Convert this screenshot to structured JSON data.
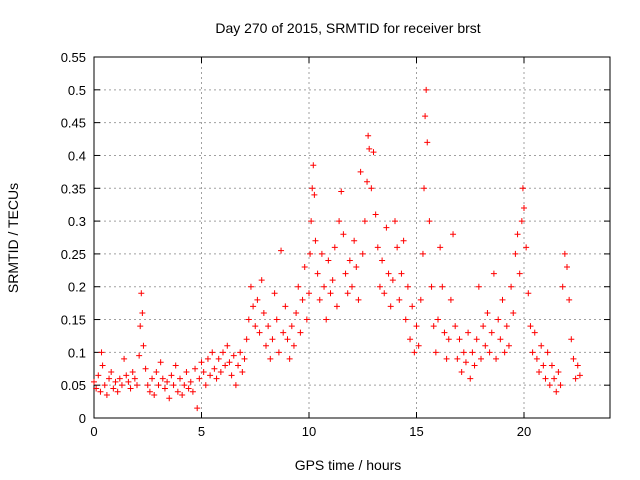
{
  "chart_data": {
    "type": "scatter",
    "title": "Day 270 of 2015, SRMTID for receiver brst",
    "xlabel": "GPS time / hours",
    "ylabel": "SRMTID / TECUs",
    "xlim": [
      0,
      24
    ],
    "ylim": [
      0,
      0.55
    ],
    "xticks": [
      0,
      5,
      10,
      15,
      20
    ],
    "xtick_labels": [
      "0",
      "5",
      "10",
      "15",
      "20"
    ],
    "yticks": [
      0,
      0.05,
      0.1,
      0.15,
      0.2,
      0.25,
      0.3,
      0.35,
      0.4,
      0.45,
      0.5,
      0.55
    ],
    "ytick_labels": [
      "0",
      "0.05",
      "0.1",
      "0.15",
      "0.2",
      "0.25",
      "0.3",
      "0.35",
      "0.4",
      "0.45",
      "0.5",
      "0.55"
    ],
    "grid": true,
    "marker": "plus",
    "marker_color": "#ff0000",
    "series": [
      {
        "name": "SRMTID",
        "points": [
          [
            0.0,
            0.055
          ],
          [
            0.1,
            0.045
          ],
          [
            0.2,
            0.065
          ],
          [
            0.3,
            0.04
          ],
          [
            0.35,
            0.1
          ],
          [
            0.4,
            0.08
          ],
          [
            0.5,
            0.05
          ],
          [
            0.6,
            0.035
          ],
          [
            0.7,
            0.06
          ],
          [
            0.8,
            0.07
          ],
          [
            0.9,
            0.045
          ],
          [
            1.0,
            0.055
          ],
          [
            1.1,
            0.04
          ],
          [
            1.2,
            0.06
          ],
          [
            1.3,
            0.05
          ],
          [
            1.4,
            0.09
          ],
          [
            1.5,
            0.065
          ],
          [
            1.6,
            0.055
          ],
          [
            1.7,
            0.045
          ],
          [
            1.8,
            0.07
          ],
          [
            1.9,
            0.06
          ],
          [
            2.0,
            0.05
          ],
          [
            2.1,
            0.095
          ],
          [
            2.15,
            0.14
          ],
          [
            2.2,
            0.19
          ],
          [
            2.25,
            0.16
          ],
          [
            2.3,
            0.11
          ],
          [
            2.4,
            0.075
          ],
          [
            2.5,
            0.05
          ],
          [
            2.6,
            0.04
          ],
          [
            2.7,
            0.06
          ],
          [
            2.8,
            0.035
          ],
          [
            2.9,
            0.07
          ],
          [
            3.0,
            0.05
          ],
          [
            3.1,
            0.085
          ],
          [
            3.2,
            0.06
          ],
          [
            3.3,
            0.045
          ],
          [
            3.4,
            0.055
          ],
          [
            3.5,
            0.03
          ],
          [
            3.6,
            0.065
          ],
          [
            3.7,
            0.05
          ],
          [
            3.8,
            0.08
          ],
          [
            3.9,
            0.04
          ],
          [
            4.0,
            0.06
          ],
          [
            4.1,
            0.035
          ],
          [
            4.2,
            0.05
          ],
          [
            4.3,
            0.07
          ],
          [
            4.4,
            0.045
          ],
          [
            4.5,
            0.055
          ],
          [
            4.6,
            0.04
          ],
          [
            4.7,
            0.075
          ],
          [
            4.8,
            0.015
          ],
          [
            4.9,
            0.06
          ],
          [
            5.0,
            0.085
          ],
          [
            5.1,
            0.07
          ],
          [
            5.2,
            0.05
          ],
          [
            5.3,
            0.09
          ],
          [
            5.4,
            0.065
          ],
          [
            5.5,
            0.1
          ],
          [
            5.6,
            0.075
          ],
          [
            5.7,
            0.06
          ],
          [
            5.8,
            0.09
          ],
          [
            5.9,
            0.07
          ],
          [
            6.0,
            0.1
          ],
          [
            6.1,
            0.08
          ],
          [
            6.2,
            0.11
          ],
          [
            6.3,
            0.085
          ],
          [
            6.4,
            0.065
          ],
          [
            6.5,
            0.095
          ],
          [
            6.6,
            0.05
          ],
          [
            6.7,
            0.08
          ],
          [
            6.8,
            0.1
          ],
          [
            6.9,
            0.07
          ],
          [
            7.0,
            0.09
          ],
          [
            7.1,
            0.12
          ],
          [
            7.2,
            0.15
          ],
          [
            7.3,
            0.2
          ],
          [
            7.4,
            0.17
          ],
          [
            7.5,
            0.14
          ],
          [
            7.6,
            0.18
          ],
          [
            7.7,
            0.13
          ],
          [
            7.8,
            0.21
          ],
          [
            7.9,
            0.16
          ],
          [
            8.0,
            0.11
          ],
          [
            8.1,
            0.14
          ],
          [
            8.2,
            0.09
          ],
          [
            8.3,
            0.12
          ],
          [
            8.4,
            0.19
          ],
          [
            8.5,
            0.15
          ],
          [
            8.6,
            0.1
          ],
          [
            8.7,
            0.255
          ],
          [
            8.8,
            0.13
          ],
          [
            8.9,
            0.17
          ],
          [
            9.0,
            0.12
          ],
          [
            9.1,
            0.09
          ],
          [
            9.2,
            0.14
          ],
          [
            9.3,
            0.11
          ],
          [
            9.4,
            0.16
          ],
          [
            9.5,
            0.2
          ],
          [
            9.6,
            0.13
          ],
          [
            9.7,
            0.18
          ],
          [
            9.8,
            0.23
          ],
          [
            9.9,
            0.15
          ],
          [
            10.0,
            0.19
          ],
          [
            10.05,
            0.25
          ],
          [
            10.1,
            0.3
          ],
          [
            10.15,
            0.35
          ],
          [
            10.2,
            0.385
          ],
          [
            10.25,
            0.34
          ],
          [
            10.3,
            0.27
          ],
          [
            10.4,
            0.22
          ],
          [
            10.5,
            0.18
          ],
          [
            10.6,
            0.25
          ],
          [
            10.7,
            0.2
          ],
          [
            10.8,
            0.15
          ],
          [
            10.9,
            0.24
          ],
          [
            11.0,
            0.19
          ],
          [
            11.1,
            0.21
          ],
          [
            11.2,
            0.26
          ],
          [
            11.3,
            0.17
          ],
          [
            11.4,
            0.3
          ],
          [
            11.5,
            0.345
          ],
          [
            11.6,
            0.28
          ],
          [
            11.7,
            0.22
          ],
          [
            11.8,
            0.19
          ],
          [
            11.9,
            0.24
          ],
          [
            12.0,
            0.2
          ],
          [
            12.1,
            0.27
          ],
          [
            12.2,
            0.23
          ],
          [
            12.3,
            0.18
          ],
          [
            12.4,
            0.375
          ],
          [
            12.5,
            0.25
          ],
          [
            12.6,
            0.3
          ],
          [
            12.7,
            0.36
          ],
          [
            12.75,
            0.43
          ],
          [
            12.8,
            0.41
          ],
          [
            12.9,
            0.35
          ],
          [
            13.0,
            0.405
          ],
          [
            13.1,
            0.31
          ],
          [
            13.2,
            0.26
          ],
          [
            13.3,
            0.2
          ],
          [
            13.4,
            0.24
          ],
          [
            13.5,
            0.19
          ],
          [
            13.6,
            0.29
          ],
          [
            13.7,
            0.22
          ],
          [
            13.8,
            0.17
          ],
          [
            13.9,
            0.21
          ],
          [
            14.0,
            0.3
          ],
          [
            14.1,
            0.26
          ],
          [
            14.2,
            0.18
          ],
          [
            14.3,
            0.22
          ],
          [
            14.4,
            0.27
          ],
          [
            14.5,
            0.15
          ],
          [
            14.6,
            0.2
          ],
          [
            14.7,
            0.12
          ],
          [
            14.8,
            0.17
          ],
          [
            14.9,
            0.1
          ],
          [
            15.0,
            0.14
          ],
          [
            15.1,
            0.11
          ],
          [
            15.2,
            0.18
          ],
          [
            15.3,
            0.25
          ],
          [
            15.35,
            0.35
          ],
          [
            15.4,
            0.46
          ],
          [
            15.45,
            0.5
          ],
          [
            15.5,
            0.42
          ],
          [
            15.6,
            0.3
          ],
          [
            15.7,
            0.2
          ],
          [
            15.8,
            0.14
          ],
          [
            15.9,
            0.1
          ],
          [
            16.0,
            0.15
          ],
          [
            16.1,
            0.26
          ],
          [
            16.2,
            0.2
          ],
          [
            16.3,
            0.13
          ],
          [
            16.4,
            0.09
          ],
          [
            16.5,
            0.12
          ],
          [
            16.6,
            0.18
          ],
          [
            16.7,
            0.28
          ],
          [
            16.8,
            0.14
          ],
          [
            16.9,
            0.09
          ],
          [
            17.0,
            0.12
          ],
          [
            17.1,
            0.07
          ],
          [
            17.2,
            0.1
          ],
          [
            17.3,
            0.085
          ],
          [
            17.4,
            0.13
          ],
          [
            17.5,
            0.06
          ],
          [
            17.6,
            0.1
          ],
          [
            17.7,
            0.08
          ],
          [
            17.8,
            0.12
          ],
          [
            17.9,
            0.2
          ],
          [
            18.0,
            0.09
          ],
          [
            18.1,
            0.14
          ],
          [
            18.2,
            0.11
          ],
          [
            18.3,
            0.16
          ],
          [
            18.4,
            0.1
          ],
          [
            18.5,
            0.13
          ],
          [
            18.6,
            0.22
          ],
          [
            18.7,
            0.09
          ],
          [
            18.8,
            0.15
          ],
          [
            18.9,
            0.12
          ],
          [
            19.0,
            0.18
          ],
          [
            19.1,
            0.1
          ],
          [
            19.2,
            0.14
          ],
          [
            19.3,
            0.11
          ],
          [
            19.4,
            0.2
          ],
          [
            19.5,
            0.16
          ],
          [
            19.6,
            0.25
          ],
          [
            19.7,
            0.28
          ],
          [
            19.8,
            0.22
          ],
          [
            19.9,
            0.3
          ],
          [
            19.95,
            0.35
          ],
          [
            20.0,
            0.32
          ],
          [
            20.1,
            0.26
          ],
          [
            20.2,
            0.19
          ],
          [
            20.3,
            0.14
          ],
          [
            20.4,
            0.1
          ],
          [
            20.5,
            0.13
          ],
          [
            20.6,
            0.09
          ],
          [
            20.7,
            0.07
          ],
          [
            20.8,
            0.11
          ],
          [
            20.9,
            0.08
          ],
          [
            21.0,
            0.06
          ],
          [
            21.1,
            0.1
          ],
          [
            21.2,
            0.05
          ],
          [
            21.3,
            0.08
          ],
          [
            21.4,
            0.06
          ],
          [
            21.5,
            0.04
          ],
          [
            21.6,
            0.07
          ],
          [
            21.7,
            0.05
          ],
          [
            21.8,
            0.2
          ],
          [
            21.9,
            0.25
          ],
          [
            22.0,
            0.23
          ],
          [
            22.1,
            0.18
          ],
          [
            22.2,
            0.12
          ],
          [
            22.3,
            0.09
          ],
          [
            22.4,
            0.06
          ],
          [
            22.5,
            0.08
          ],
          [
            22.6,
            0.065
          ]
        ]
      }
    ]
  }
}
